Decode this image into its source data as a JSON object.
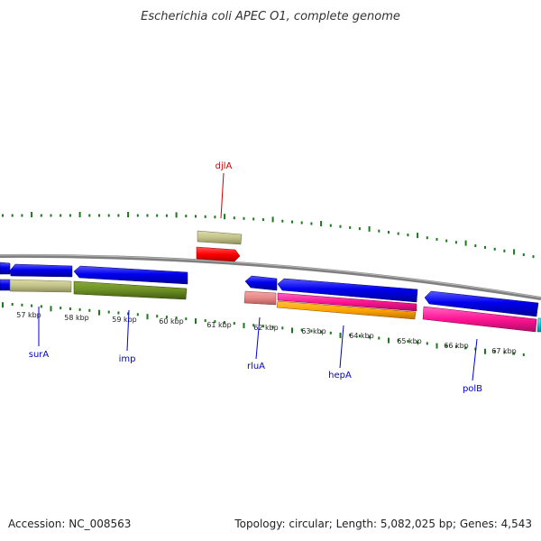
{
  "title": "Escherichia coli APEC O1, complete genome",
  "footer": {
    "accession": "Accession: NC_008563",
    "summary": "Topology: circular; Length: 5,082,025 bp; Genes: 4,543"
  },
  "colors": {
    "forward_label": "#cc0000",
    "reverse_label": "#0000cc",
    "tick": "#1a7a1a",
    "backbone": "#8a8a8a"
  },
  "ticks": [
    "57 kbp",
    "58 kbp",
    "59 kbp",
    "60 kbp",
    "61 kbp",
    "62 kbp",
    "63 kbp",
    "64 kbp",
    "65 kbp",
    "66 kbp",
    "67 kbp"
  ],
  "genes": [
    {
      "label": "djlA",
      "strand": "forward"
    },
    {
      "label": "surA",
      "strand": "reverse"
    },
    {
      "label": "imp",
      "strand": "reverse"
    },
    {
      "label": "rluA",
      "strand": "reverse"
    },
    {
      "label": "hepA",
      "strand": "reverse"
    },
    {
      "label": "polB",
      "strand": "reverse"
    }
  ]
}
